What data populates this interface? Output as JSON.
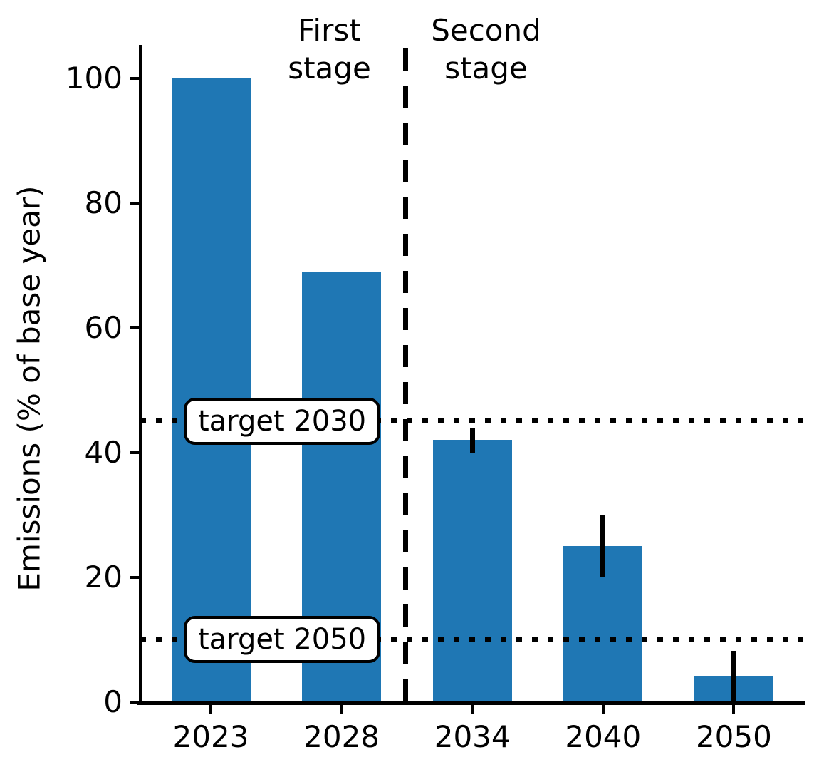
{
  "figure": {
    "background": "#ffffff",
    "ylabel": "Emissions (% of base year)"
  },
  "chart_data": {
    "type": "bar",
    "title": "",
    "xlabel": "",
    "ylabel": "Emissions (% of base year)",
    "categories": [
      "2023",
      "2028",
      "2034",
      "2040",
      "2050"
    ],
    "values": [
      100,
      69,
      42,
      25,
      4.2
    ],
    "error_bars": [
      null,
      null,
      2,
      5,
      4
    ],
    "bar_color": "#1f77b4",
    "error_color": "#000000",
    "yticks": [
      "0",
      "20",
      "40",
      "60",
      "80",
      "100"
    ],
    "ytick_values": [
      0,
      20,
      40,
      60,
      80,
      100
    ],
    "ylim": [
      0,
      106
    ],
    "grid": false,
    "legend": false,
    "targets": [
      {
        "label": "target 2030",
        "value": 45
      },
      {
        "label": "target 2050",
        "value": 10
      }
    ],
    "stage_divider_between": [
      "2028",
      "2034"
    ],
    "annotations": [
      {
        "text": "First stage",
        "side": "left-of-divider"
      },
      {
        "text": "Second stage",
        "side": "right-of-divider"
      }
    ]
  }
}
